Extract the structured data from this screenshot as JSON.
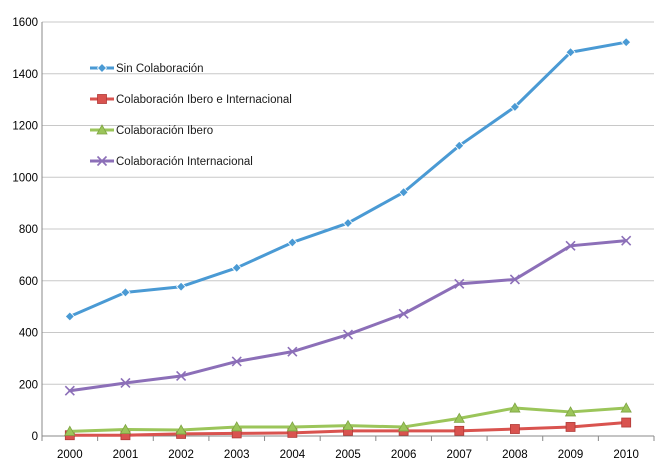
{
  "chart_data": {
    "type": "line",
    "title": "",
    "xlabel": "",
    "ylabel": "",
    "categories": [
      "2000",
      "2001",
      "2002",
      "2003",
      "2004",
      "2005",
      "2006",
      "2007",
      "2008",
      "2009",
      "2010"
    ],
    "ylim": [
      0,
      1600
    ],
    "yticks": [
      0,
      200,
      400,
      600,
      800,
      1000,
      1200,
      1400,
      1600
    ],
    "grid": "horizontal",
    "legend": "upper-left inside plot",
    "series": [
      {
        "name": "Sin Colaboración",
        "color": "#4A9AD4",
        "marker": "diamond",
        "values": [
          462,
          555,
          577,
          650,
          748,
          823,
          942,
          1122,
          1272,
          1483,
          1522
        ]
      },
      {
        "name": "Colaboración Ibero e Internacional",
        "color": "#D9534F",
        "marker": "square",
        "values": [
          3,
          3,
          8,
          10,
          12,
          20,
          20,
          20,
          27,
          35,
          52
        ]
      },
      {
        "name": "Colaboración Ibero",
        "color": "#9BC55A",
        "marker": "triangle",
        "values": [
          18,
          25,
          23,
          35,
          35,
          40,
          35,
          68,
          108,
          93,
          108
        ]
      },
      {
        "name": "Colaboración Internacional",
        "color": "#8C6FB8",
        "marker": "x",
        "values": [
          175,
          205,
          232,
          288,
          326,
          392,
          472,
          588,
          605,
          735,
          755
        ]
      }
    ]
  }
}
